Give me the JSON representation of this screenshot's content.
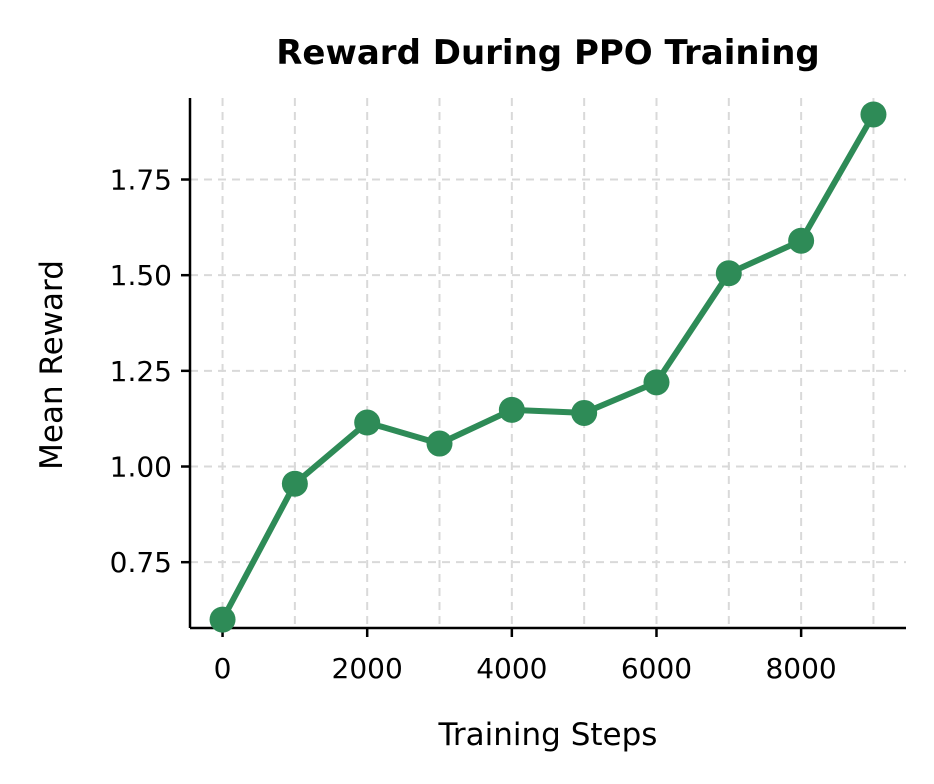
{
  "chart_data": {
    "type": "line",
    "title": "Reward During PPO Training",
    "xlabel": "Training Steps",
    "ylabel": "Mean Reward",
    "x": [
      0,
      1000,
      2000,
      3000,
      4000,
      5000,
      6000,
      7000,
      8000,
      9000
    ],
    "series": [
      {
        "values": [
          0.6,
          0.955,
          1.115,
          1.06,
          1.148,
          1.14,
          1.22,
          1.505,
          1.59,
          1.92
        ],
        "color": "#2e8b57",
        "marker": "circle"
      }
    ],
    "xlim": [
      -450,
      9450
    ],
    "ylim": [
      0.578,
      1.963
    ],
    "xticks": [
      0,
      2000,
      4000,
      6000,
      8000
    ],
    "yticks": [
      0.75,
      1.0,
      1.25,
      1.5,
      1.75
    ],
    "xtick_labels": [
      "0",
      "2000",
      "4000",
      "6000",
      "8000"
    ],
    "ytick_labels": [
      "0.75",
      "1.00",
      "1.25",
      "1.50",
      "1.75"
    ],
    "grid": true,
    "grid_style": "dashed",
    "grid_color": "#d9d9d9",
    "axis_color": "#000000"
  }
}
